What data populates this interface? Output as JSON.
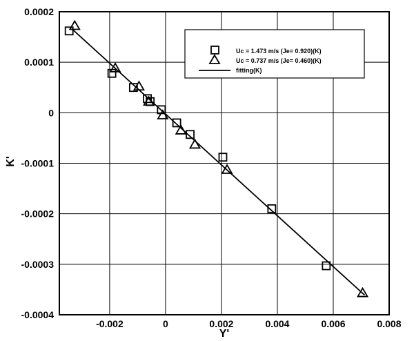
{
  "chart_data": {
    "type": "scatter",
    "xlabel": "Y'",
    "ylabel": "K'",
    "xlim": [
      -0.0038,
      0.008
    ],
    "ylim": [
      -0.0004,
      0.0002
    ],
    "x_ticks": [
      "-0.002",
      "0",
      "0.002",
      "0.004",
      "0.006",
      "0.008"
    ],
    "y_ticks": [
      "0.0002",
      "0.0001",
      "0",
      "-0.0001",
      "-0.0002",
      "-0.0003",
      "-0.0004"
    ],
    "x_tick_values": [
      -0.002,
      0,
      0.002,
      0.004,
      0.006,
      0.008
    ],
    "y_tick_values": [
      0.0002,
      0.0001,
      0,
      -0.0001,
      -0.0002,
      -0.0003,
      -0.0004
    ],
    "grid": true,
    "legend_position": "top-right",
    "series": [
      {
        "name": "Uc = 1.473 m/s (Je= 0.920)(K)",
        "marker": "square",
        "x": [
          -0.00345,
          -0.00192,
          -0.00115,
          -0.00065,
          -0.00055,
          -0.00015,
          0.0004,
          0.00088,
          0.00205,
          0.0038,
          0.00575
        ],
        "y": [
          0.000162,
          7.8e-05,
          5e-05,
          2.8e-05,
          2.2e-05,
          6e-06,
          -2e-05,
          -4.3e-05,
          -8.8e-05,
          -0.00019,
          -0.000303
        ]
      },
      {
        "name": "Uc = 0.737 m/s (Je= 0.460)(K)",
        "marker": "triangle",
        "x": [
          -0.00325,
          -0.0018,
          -0.00095,
          -0.0006,
          -0.0001,
          0.00055,
          0.00105,
          0.0022,
          0.00705
        ],
        "y": [
          0.000172,
          8.8e-05,
          5.2e-05,
          2.2e-05,
          -5e-06,
          -3.5e-05,
          -6.3e-05,
          -0.000113,
          -0.000357
        ]
      },
      {
        "name": "fitting(K)",
        "marker": "line",
        "x": [
          -0.00335,
          0.00712
        ],
        "y": [
          0.000166,
          -0.000361
        ]
      }
    ]
  }
}
